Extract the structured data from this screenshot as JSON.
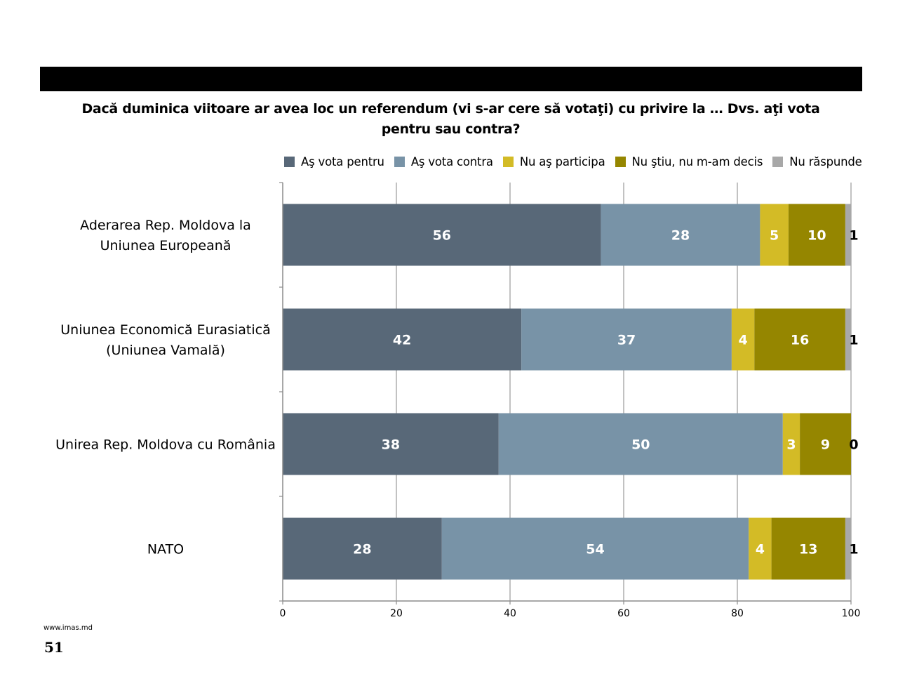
{
  "header": {
    "title_line1": "Dacă duminica viitoare ar avea loc un referendum (vi s-ar cere să votaţi) cu privire la … Dvs. aţi vota",
    "title_line2": "pentru sau contra?"
  },
  "footer": {
    "url": "www.imas.md",
    "page_number": "51"
  },
  "chart_data": {
    "type": "bar",
    "orientation": "horizontal",
    "stacked": true,
    "title": "Dacă duminica viitoare ar avea loc un referendum (vi s-ar cere să votaţi) cu privire la … Dvs. aţi vota pentru sau contra?",
    "categories": [
      [
        "Aderarea Rep. Moldova la",
        "Uniunea Europeană"
      ],
      [
        "Uniunea Economică Eurasiatică",
        "(Uniunea Vamală)"
      ],
      [
        "Unirea Rep. Moldova cu România"
      ],
      [
        "NATO"
      ]
    ],
    "series": [
      {
        "name": "Aş vota pentru",
        "color": "#586878",
        "label_color": "#ffffff",
        "values": [
          56,
          42,
          38,
          28
        ]
      },
      {
        "name": "Aş vota contra",
        "color": "#7893a7",
        "label_color": "#ffffff",
        "values": [
          28,
          37,
          50,
          54
        ]
      },
      {
        "name": "Nu aş participa",
        "color": "#d3bb26",
        "label_color": "#ffffff",
        "values": [
          5,
          4,
          3,
          4
        ]
      },
      {
        "name": "Nu ştiu, nu m-am decis",
        "color": "#958600",
        "label_color": "#ffffff",
        "values": [
          10,
          16,
          9,
          13
        ]
      },
      {
        "name": "Nu răspunde",
        "color": "#a8a8a8",
        "label_color": "#000000",
        "values": [
          1,
          1,
          0,
          1
        ]
      }
    ],
    "xlim": [
      0,
      100
    ],
    "x_ticks": [
      0,
      20,
      40,
      60,
      80,
      100
    ],
    "grid": true,
    "legend_position": "top"
  }
}
